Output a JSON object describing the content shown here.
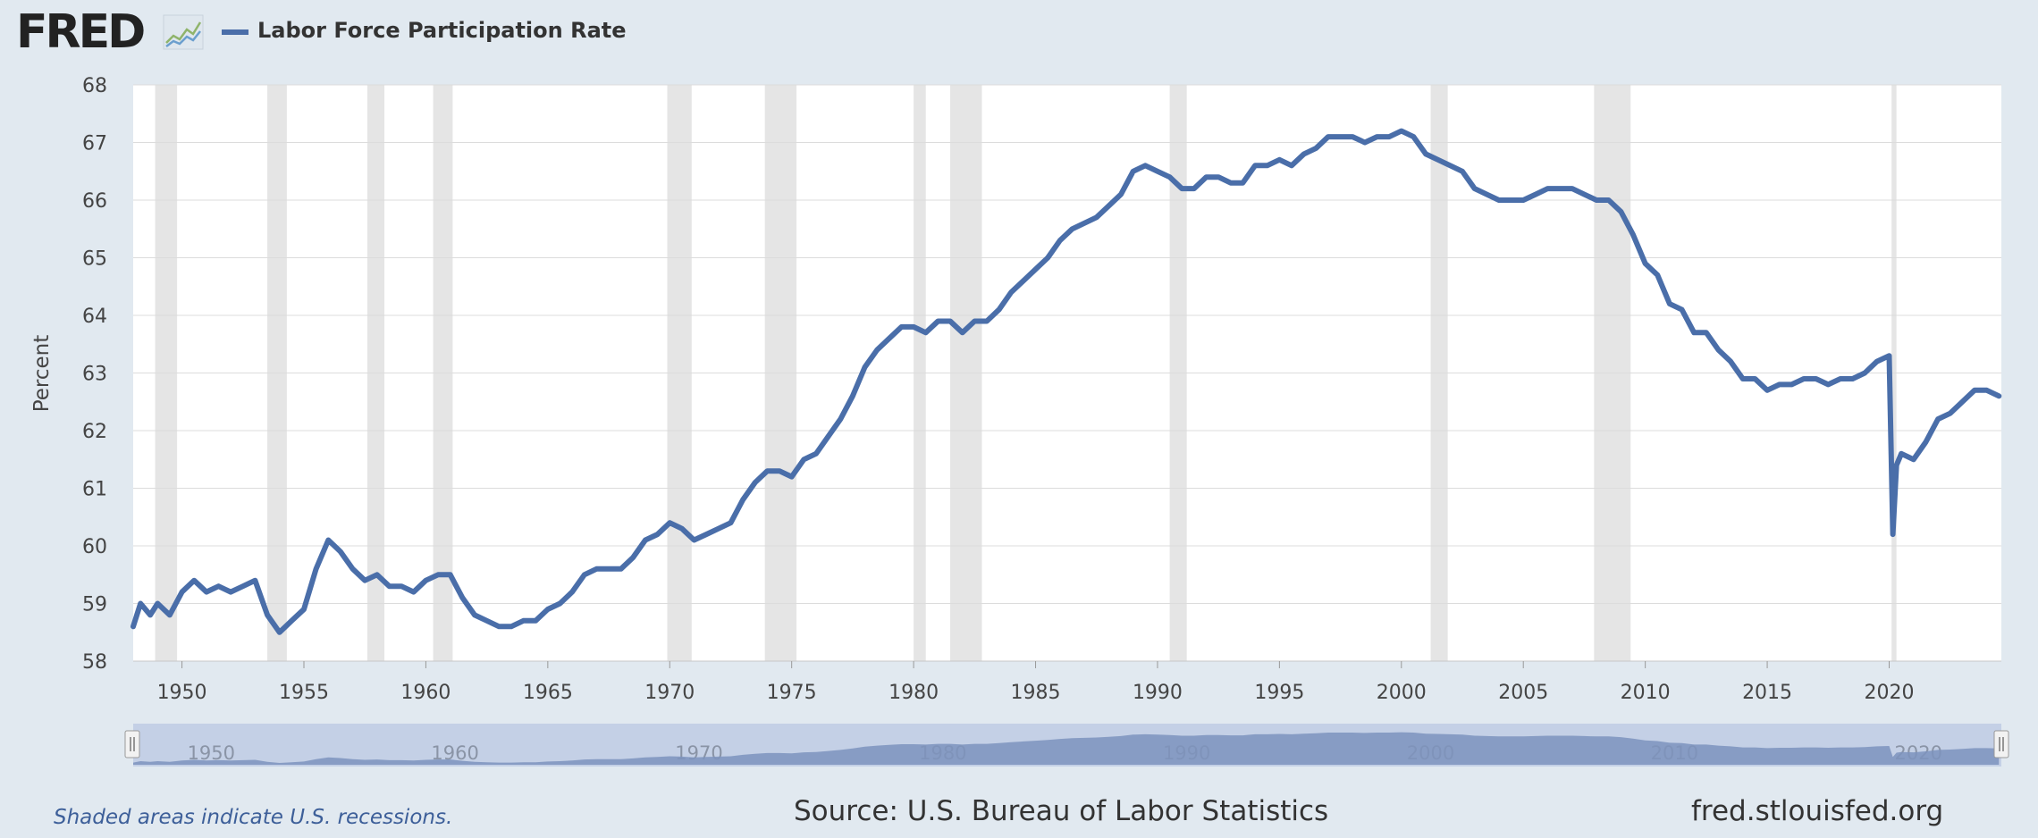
{
  "header": {
    "logo_text": "FRED",
    "legend_label": "Labor Force Participation Rate"
  },
  "footer": {
    "note": "Shaded areas indicate U.S. recessions.",
    "source": "Source: U.S. Bureau of Labor Statistics",
    "site": "fred.stlouisfed.org"
  },
  "colors": {
    "series": "#4a6ea9",
    "recession": "#e5e5e5",
    "page_background": "#e1e9f0",
    "plot_background": "#ffffff"
  },
  "chart_data": {
    "type": "line",
    "title": "",
    "xlabel": "",
    "ylabel": "Percent",
    "xlim": [
      1948.0,
      2024.6
    ],
    "ylim": [
      58,
      68
    ],
    "yticks": [
      58,
      59,
      60,
      61,
      62,
      63,
      64,
      65,
      66,
      67,
      68
    ],
    "xticks": [
      1950,
      1955,
      1960,
      1965,
      1970,
      1975,
      1980,
      1985,
      1990,
      1995,
      2000,
      2005,
      2010,
      2015,
      2020
    ],
    "grid": "horizontal",
    "legend": "top-left",
    "navigator_labels": [
      "1950",
      "1960",
      "1970",
      "1980",
      "1990",
      "2000",
      "2010",
      "2020"
    ],
    "recessions": [
      [
        1948.9,
        1949.8
      ],
      [
        1953.5,
        1954.3
      ],
      [
        1957.6,
        1958.3
      ],
      [
        1960.3,
        1961.1
      ],
      [
        1969.9,
        1970.9
      ],
      [
        1973.9,
        1975.2
      ],
      [
        1980.0,
        1980.5
      ],
      [
        1981.5,
        1982.8
      ],
      [
        1990.5,
        1991.2
      ],
      [
        2001.2,
        2001.9
      ],
      [
        2007.9,
        2009.4
      ],
      [
        2020.1,
        2020.3
      ]
    ],
    "series": [
      {
        "name": "Labor Force Participation Rate",
        "x": [
          1948.0,
          1948.3,
          1948.7,
          1949.0,
          1949.5,
          1950.0,
          1950.5,
          1951.0,
          1951.5,
          1952.0,
          1952.5,
          1953.0,
          1953.5,
          1954.0,
          1954.5,
          1955.0,
          1955.5,
          1956.0,
          1956.5,
          1957.0,
          1957.5,
          1958.0,
          1958.5,
          1959.0,
          1959.5,
          1960.0,
          1960.5,
          1961.0,
          1961.5,
          1962.0,
          1962.5,
          1963.0,
          1963.5,
          1964.0,
          1964.5,
          1965.0,
          1965.5,
          1966.0,
          1966.5,
          1967.0,
          1967.5,
          1968.0,
          1968.5,
          1969.0,
          1969.5,
          1970.0,
          1970.5,
          1971.0,
          1971.5,
          1972.0,
          1972.5,
          1973.0,
          1973.5,
          1974.0,
          1974.5,
          1975.0,
          1975.5,
          1976.0,
          1976.5,
          1977.0,
          1977.5,
          1978.0,
          1978.5,
          1979.0,
          1979.5,
          1980.0,
          1980.5,
          1981.0,
          1981.5,
          1982.0,
          1982.5,
          1983.0,
          1983.5,
          1984.0,
          1984.5,
          1985.0,
          1985.5,
          1986.0,
          1986.5,
          1987.0,
          1987.5,
          1988.0,
          1988.5,
          1989.0,
          1989.5,
          1990.0,
          1990.5,
          1991.0,
          1991.5,
          1992.0,
          1992.5,
          1993.0,
          1993.5,
          1994.0,
          1994.5,
          1995.0,
          1995.5,
          1996.0,
          1996.5,
          1997.0,
          1997.5,
          1998.0,
          1998.5,
          1999.0,
          1999.5,
          2000.0,
          2000.5,
          2001.0,
          2001.5,
          2002.0,
          2002.5,
          2003.0,
          2003.5,
          2004.0,
          2004.5,
          2005.0,
          2005.5,
          2006.0,
          2006.5,
          2007.0,
          2007.5,
          2008.0,
          2008.5,
          2009.0,
          2009.5,
          2010.0,
          2010.5,
          2011.0,
          2011.5,
          2012.0,
          2012.5,
          2013.0,
          2013.5,
          2014.0,
          2014.5,
          2015.0,
          2015.5,
          2016.0,
          2016.5,
          2017.0,
          2017.5,
          2018.0,
          2018.5,
          2019.0,
          2019.5,
          2020.0,
          2020.15,
          2020.3,
          2020.5,
          2021.0,
          2021.5,
          2022.0,
          2022.5,
          2023.0,
          2023.5,
          2024.0,
          2024.5
        ],
        "values": [
          58.6,
          59.0,
          58.8,
          59.0,
          58.8,
          59.2,
          59.4,
          59.2,
          59.3,
          59.2,
          59.3,
          59.4,
          58.8,
          58.5,
          58.7,
          58.9,
          59.6,
          60.1,
          59.9,
          59.6,
          59.4,
          59.5,
          59.3,
          59.3,
          59.2,
          59.4,
          59.5,
          59.5,
          59.1,
          58.8,
          58.7,
          58.6,
          58.6,
          58.7,
          58.7,
          58.9,
          59.0,
          59.2,
          59.5,
          59.6,
          59.6,
          59.6,
          59.8,
          60.1,
          60.2,
          60.4,
          60.3,
          60.1,
          60.2,
          60.3,
          60.4,
          60.8,
          61.1,
          61.3,
          61.3,
          61.2,
          61.5,
          61.6,
          61.9,
          62.2,
          62.6,
          63.1,
          63.4,
          63.6,
          63.8,
          63.8,
          63.7,
          63.9,
          63.9,
          63.7,
          63.9,
          63.9,
          64.1,
          64.4,
          64.6,
          64.8,
          65.0,
          65.3,
          65.5,
          65.6,
          65.7,
          65.9,
          66.1,
          66.5,
          66.6,
          66.5,
          66.4,
          66.2,
          66.2,
          66.4,
          66.4,
          66.3,
          66.3,
          66.6,
          66.6,
          66.7,
          66.6,
          66.8,
          66.9,
          67.1,
          67.1,
          67.1,
          67.0,
          67.1,
          67.1,
          67.2,
          67.1,
          66.8,
          66.7,
          66.6,
          66.5,
          66.2,
          66.1,
          66.0,
          66.0,
          66.0,
          66.1,
          66.2,
          66.2,
          66.2,
          66.1,
          66.0,
          66.0,
          65.8,
          65.4,
          64.9,
          64.7,
          64.2,
          64.1,
          63.7,
          63.7,
          63.4,
          63.2,
          62.9,
          62.9,
          62.7,
          62.8,
          62.8,
          62.9,
          62.9,
          62.8,
          62.9,
          62.9,
          63.0,
          63.2,
          63.3,
          60.2,
          61.4,
          61.6,
          61.5,
          61.8,
          62.2,
          62.3,
          62.5,
          62.7,
          62.7,
          62.6
        ]
      }
    ]
  }
}
